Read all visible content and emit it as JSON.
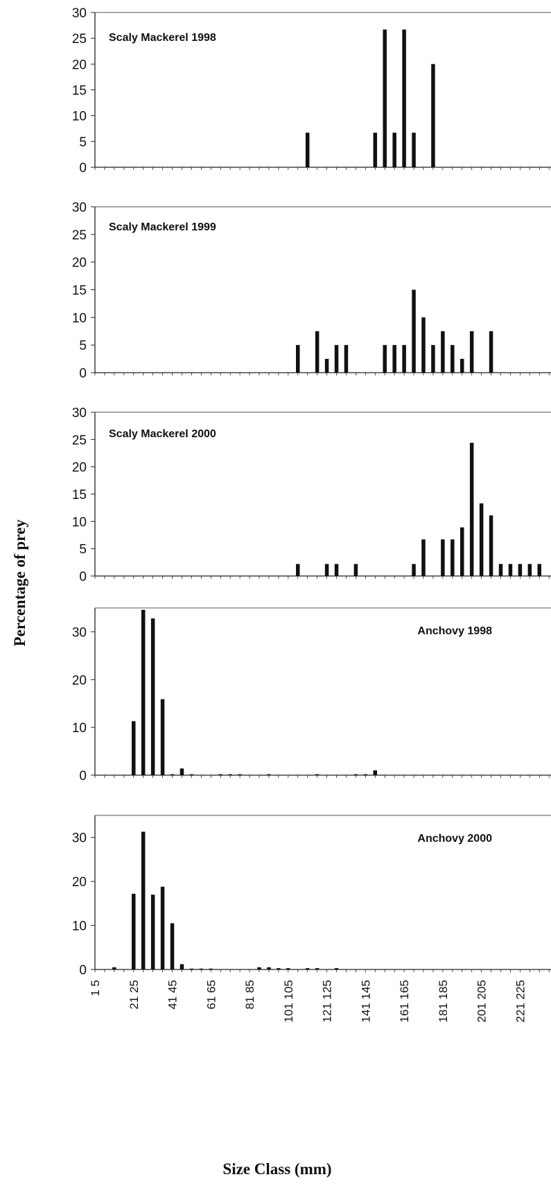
{
  "chart_data": {
    "type": "bar",
    "ylabel": "Percentage of prey",
    "xlabel": "Size Class (mm)",
    "x_tick_labels": [
      "1 5",
      "21 25",
      "41 45",
      "61 65",
      "81 85",
      "101 105",
      "121 125",
      "141 145",
      "161 165",
      "181 185",
      "201 205",
      "221 225"
    ],
    "panels": [
      {
        "title": "Scaly Mackerel 1998",
        "ylim": [
          0,
          30
        ],
        "yticks": [
          0,
          5,
          10,
          15,
          20,
          25,
          30
        ],
        "bars": [
          {
            "x": 111,
            "value": 6.7
          },
          {
            "x": 146,
            "value": 6.7
          },
          {
            "x": 151,
            "value": 26.7
          },
          {
            "x": 156,
            "value": 6.7
          },
          {
            "x": 161,
            "value": 26.7
          },
          {
            "x": 166,
            "value": 6.7
          },
          {
            "x": 176,
            "value": 20
          }
        ]
      },
      {
        "title": "Scaly Mackerel 1999",
        "ylim": [
          0,
          30
        ],
        "yticks": [
          0,
          5,
          10,
          15,
          20,
          25,
          30
        ],
        "bars": [
          {
            "x": 106,
            "value": 5
          },
          {
            "x": 116,
            "value": 7.5
          },
          {
            "x": 121,
            "value": 2.5
          },
          {
            "x": 126,
            "value": 5
          },
          {
            "x": 131,
            "value": 5
          },
          {
            "x": 151,
            "value": 5
          },
          {
            "x": 156,
            "value": 5
          },
          {
            "x": 161,
            "value": 5
          },
          {
            "x": 166,
            "value": 15
          },
          {
            "x": 171,
            "value": 10
          },
          {
            "x": 176,
            "value": 5
          },
          {
            "x": 181,
            "value": 7.5
          },
          {
            "x": 186,
            "value": 5
          },
          {
            "x": 191,
            "value": 2.5
          },
          {
            "x": 196,
            "value": 7.5
          },
          {
            "x": 206,
            "value": 7.5
          }
        ]
      },
      {
        "title": "Scaly Mackerel  2000",
        "ylim": [
          0,
          30
        ],
        "yticks": [
          0,
          5,
          10,
          15,
          20,
          25,
          30
        ],
        "bars": [
          {
            "x": 106,
            "value": 2.2
          },
          {
            "x": 121,
            "value": 2.2
          },
          {
            "x": 126,
            "value": 2.2
          },
          {
            "x": 136,
            "value": 2.2
          },
          {
            "x": 166,
            "value": 2.2
          },
          {
            "x": 171,
            "value": 6.7
          },
          {
            "x": 181,
            "value": 6.7
          },
          {
            "x": 186,
            "value": 6.7
          },
          {
            "x": 191,
            "value": 8.9
          },
          {
            "x": 196,
            "value": 24.4
          },
          {
            "x": 201,
            "value": 13.3
          },
          {
            "x": 206,
            "value": 11.1
          },
          {
            "x": 211,
            "value": 2.2
          },
          {
            "x": 216,
            "value": 2.2
          },
          {
            "x": 221,
            "value": 2.2
          },
          {
            "x": 226,
            "value": 2.2
          },
          {
            "x": 231,
            "value": 2.2
          }
        ]
      },
      {
        "title": "Anchovy 1998",
        "ylim": [
          0,
          35
        ],
        "yticks": [
          0,
          10,
          20,
          30
        ],
        "bars": [
          {
            "x": 21,
            "value": 11.3
          },
          {
            "x": 26,
            "value": 34.6
          },
          {
            "x": 31,
            "value": 32.8
          },
          {
            "x": 36,
            "value": 15.9
          },
          {
            "x": 41,
            "value": 0.2
          },
          {
            "x": 46,
            "value": 1.4
          },
          {
            "x": 51,
            "value": 0.2
          },
          {
            "x": 66,
            "value": 0.2
          },
          {
            "x": 71,
            "value": 0.2
          },
          {
            "x": 76,
            "value": 0.2
          },
          {
            "x": 91,
            "value": 0.2
          },
          {
            "x": 116,
            "value": 0.2
          },
          {
            "x": 136,
            "value": 0.2
          },
          {
            "x": 141,
            "value": 0.2
          },
          {
            "x": 146,
            "value": 1
          }
        ]
      },
      {
        "title": "Anchovy 2000",
        "ylim": [
          0,
          35
        ],
        "yticks": [
          0,
          10,
          20,
          30
        ],
        "bars": [
          {
            "x": 11,
            "value": 0.5
          },
          {
            "x": 21,
            "value": 17.2
          },
          {
            "x": 26,
            "value": 31.3
          },
          {
            "x": 31,
            "value": 17
          },
          {
            "x": 36,
            "value": 18.8
          },
          {
            "x": 41,
            "value": 10.5
          },
          {
            "x": 46,
            "value": 1.2
          },
          {
            "x": 51,
            "value": 0.2
          },
          {
            "x": 56,
            "value": 0.2
          },
          {
            "x": 61,
            "value": 0.2
          },
          {
            "x": 86,
            "value": 0.5
          },
          {
            "x": 91,
            "value": 0.5
          },
          {
            "x": 96,
            "value": 0.3
          },
          {
            "x": 101,
            "value": 0.3
          },
          {
            "x": 111,
            "value": 0.3
          },
          {
            "x": 116,
            "value": 0.3
          },
          {
            "x": 126,
            "value": 0.3
          }
        ]
      }
    ]
  }
}
